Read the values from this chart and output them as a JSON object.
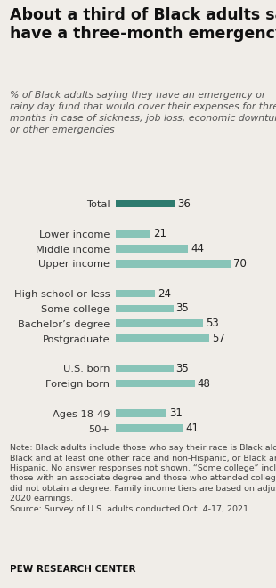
{
  "title": "About a third of Black adults say they\nhave a three-month emergency fund",
  "subtitle": "% of Black adults saying they have an emergency or\nrainy day fund that would cover their expenses for three\nmonths in case of sickness, job loss, economic downturn\nor other emergencies",
  "categories": [
    "Total",
    "",
    "Lower income",
    "Middle income",
    "Upper income",
    "",
    "High school or less",
    "Some college",
    "Bachelor’s degree",
    "Postgraduate",
    "",
    "U.S. born",
    "Foreign born",
    "",
    "Ages 18-49",
    "50+"
  ],
  "values": [
    36,
    null,
    21,
    44,
    70,
    null,
    24,
    35,
    53,
    57,
    null,
    35,
    48,
    null,
    31,
    41
  ],
  "bar_colors": [
    "#2e7b6e",
    null,
    "#88c4b8",
    "#88c4b8",
    "#88c4b8",
    null,
    "#88c4b8",
    "#88c4b8",
    "#88c4b8",
    "#88c4b8",
    null,
    "#88c4b8",
    "#88c4b8",
    null,
    "#88c4b8",
    "#88c4b8"
  ],
  "xlim": [
    0,
    84
  ],
  "bar_height": 0.5,
  "note": "Note: Black adults include those who say their race is Black alone,\nBlack and at least one other race and non-Hispanic, or Black and\nHispanic. No answer responses not shown. “Some college” includes\nthose with an associate degree and those who attended college but\ndid not obtain a degree. Family income tiers are based on adjusted\n2020 earnings.\nSource: Survey of U.S. adults conducted Oct. 4-17, 2021.",
  "branding": "PEW RESEARCH CENTER",
  "background_color": "#f0ede8",
  "title_fontsize": 12.5,
  "subtitle_fontsize": 7.8,
  "label_fontsize": 8.2,
  "value_fontsize": 8.5,
  "note_fontsize": 6.8,
  "brand_fontsize": 7.5
}
